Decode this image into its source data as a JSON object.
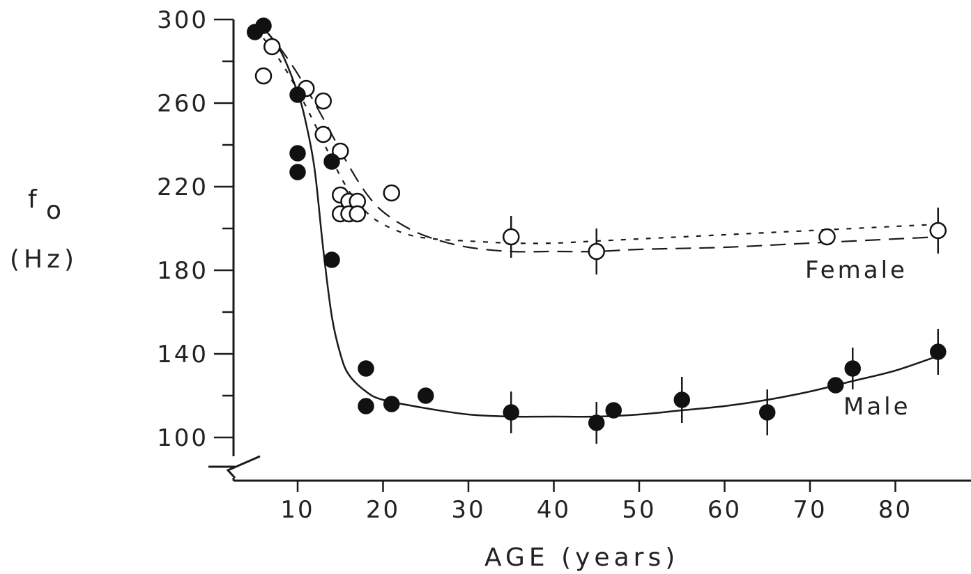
{
  "chart_data": {
    "type": "scatter",
    "xlabel": "AGE (years)",
    "ylabel": {
      "symbol": "f",
      "subscript": "o",
      "unit": "(Hz)"
    },
    "xlim": [
      2,
      94
    ],
    "ylim": [
      80,
      300
    ],
    "xticks": [
      10,
      20,
      30,
      40,
      50,
      60,
      70,
      80
    ],
    "yticks_major": [
      100,
      140,
      180,
      220,
      260,
      300
    ],
    "yticks_minor": [
      120,
      160,
      200,
      240,
      280
    ],
    "axis_break": true,
    "grid": false,
    "series": [
      {
        "name": "Female",
        "marker": "open-circle",
        "fit": "dashed",
        "points": [
          {
            "x": 6,
            "y": 273
          },
          {
            "x": 7,
            "y": 287
          },
          {
            "x": 11,
            "y": 267
          },
          {
            "x": 13,
            "y": 261
          },
          {
            "x": 13,
            "y": 245
          },
          {
            "x": 15,
            "y": 237
          },
          {
            "x": 15,
            "y": 216
          },
          {
            "x": 15,
            "y": 207
          },
          {
            "x": 16,
            "y": 213
          },
          {
            "x": 16,
            "y": 207
          },
          {
            "x": 17,
            "y": 213
          },
          {
            "x": 17,
            "y": 207
          },
          {
            "x": 21,
            "y": 217
          },
          {
            "x": 35,
            "y": 196,
            "err": 8
          },
          {
            "x": 45,
            "y": 189,
            "err": 9
          },
          {
            "x": 72,
            "y": 196
          },
          {
            "x": 85,
            "y": 199,
            "err": 9
          }
        ],
        "curve_a": [
          [
            6,
            296
          ],
          [
            8,
            286
          ],
          [
            10,
            274
          ],
          [
            12,
            260
          ],
          [
            14,
            245
          ],
          [
            16,
            230
          ],
          [
            18,
            217
          ],
          [
            20,
            208
          ],
          [
            23,
            200
          ],
          [
            26,
            195
          ],
          [
            30,
            191
          ],
          [
            35,
            189
          ],
          [
            40,
            189
          ],
          [
            45,
            189
          ],
          [
            50,
            190
          ],
          [
            60,
            191
          ],
          [
            70,
            193
          ],
          [
            85,
            196
          ]
        ],
        "curve_b": [
          [
            6,
            291
          ],
          [
            8,
            280
          ],
          [
            10,
            266
          ],
          [
            12,
            250
          ],
          [
            14,
            233
          ],
          [
            16,
            218
          ],
          [
            18,
            208
          ],
          [
            20,
            202
          ],
          [
            23,
            197
          ],
          [
            26,
            195
          ],
          [
            30,
            194
          ],
          [
            35,
            193
          ],
          [
            40,
            193
          ],
          [
            45,
            194
          ],
          [
            50,
            195
          ],
          [
            60,
            197
          ],
          [
            70,
            199
          ],
          [
            85,
            202
          ]
        ]
      },
      {
        "name": "Male",
        "marker": "filled-circle",
        "fit": "solid",
        "points": [
          {
            "x": 5,
            "y": 294
          },
          {
            "x": 6,
            "y": 297
          },
          {
            "x": 10,
            "y": 264
          },
          {
            "x": 10,
            "y": 236
          },
          {
            "x": 10,
            "y": 227
          },
          {
            "x": 14,
            "y": 232
          },
          {
            "x": 14,
            "y": 185
          },
          {
            "x": 18,
            "y": 133
          },
          {
            "x": 18,
            "y": 115
          },
          {
            "x": 21,
            "y": 116
          },
          {
            "x": 25,
            "y": 120
          },
          {
            "x": 35,
            "y": 112,
            "err": 8
          },
          {
            "x": 45,
            "y": 107,
            "err": 8
          },
          {
            "x": 47,
            "y": 113
          },
          {
            "x": 55,
            "y": 118,
            "err": 9
          },
          {
            "x": 65,
            "y": 112,
            "err": 9
          },
          {
            "x": 73,
            "y": 125
          },
          {
            "x": 75,
            "y": 133,
            "err": 8
          },
          {
            "x": 85,
            "y": 141,
            "err": 9
          }
        ],
        "curve": [
          [
            6,
            296
          ],
          [
            8,
            285
          ],
          [
            10,
            265
          ],
          [
            11,
            250
          ],
          [
            12,
            228
          ],
          [
            13,
            190
          ],
          [
            14,
            158
          ],
          [
            15,
            140
          ],
          [
            16,
            130
          ],
          [
            18,
            122
          ],
          [
            20,
            118
          ],
          [
            25,
            114
          ],
          [
            30,
            111
          ],
          [
            35,
            110
          ],
          [
            40,
            110
          ],
          [
            45,
            110
          ],
          [
            50,
            111
          ],
          [
            55,
            113
          ],
          [
            60,
            115
          ],
          [
            65,
            118
          ],
          [
            70,
            122
          ],
          [
            75,
            127
          ],
          [
            80,
            132
          ],
          [
            85,
            139
          ]
        ]
      }
    ]
  }
}
